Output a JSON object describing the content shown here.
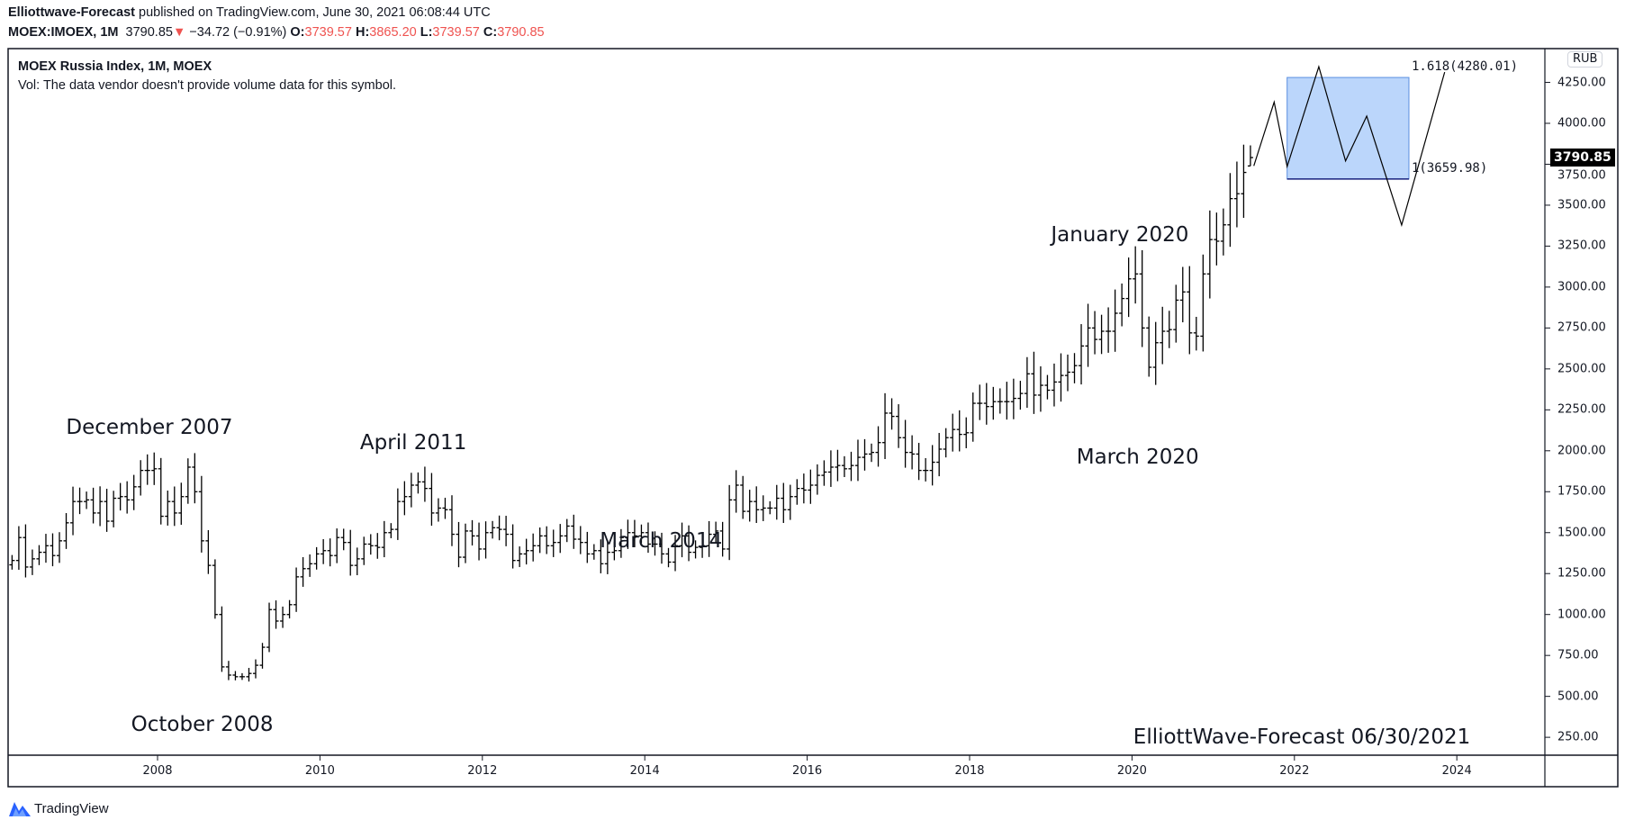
{
  "header": {
    "author": "Elliottwave-Forecast",
    "published": "published on TradingView.com, June 30, 2021 06:08:44 UTC",
    "symbol": "MOEX:IMOEX, 1M",
    "last": "3790.85",
    "change": "−34.72 (−0.91%)",
    "o_label": "O:",
    "o": "3739.57",
    "h_label": "H:",
    "h": "3865.20",
    "l_label": "L:",
    "l": "3739.57",
    "c_label": "C:",
    "c": "3790.85",
    "down_color": "#ef5350"
  },
  "legend": {
    "title": "MOEX Russia Index, 1M, MOEX",
    "vol": "Vol: The data vendor doesn't provide volume data for this symbol."
  },
  "brand": {
    "name": "TradingView",
    "icon": "tradingview-logo-icon",
    "color": "#2962ff"
  },
  "chart_data": {
    "type": "ohlc-bar",
    "currency": "RUB",
    "last_price_label": "3790.85",
    "ylim": [
      100,
      4450
    ],
    "yticks": [
      "250.00",
      "500.00",
      "750.00",
      "1000.00",
      "1250.00",
      "1500.00",
      "1750.00",
      "2000.00",
      "2250.00",
      "2500.00",
      "2750.00",
      "3000.00",
      "3250.00",
      "3500.00",
      "3750.00",
      "4000.00",
      "4250.00"
    ],
    "xticks": [
      "2008",
      "2010",
      "2012",
      "2014",
      "2016",
      "2018",
      "2020",
      "2022",
      "2024"
    ],
    "xlim": [
      "2006-02",
      "2024-10"
    ],
    "grid": false,
    "start_month": "2006-03",
    "monthly_close": [
      1330,
      1470,
      1290,
      1340,
      1380,
      1420,
      1360,
      1450,
      1560,
      1690,
      1690,
      1700,
      1620,
      1690,
      1570,
      1710,
      1720,
      1700,
      1780,
      1880,
      1880,
      1890,
      1600,
      1690,
      1620,
      1720,
      1900,
      1750,
      1450,
      1300,
      1000,
      680,
      630,
      620,
      620,
      640,
      690,
      800,
      1030,
      960,
      1000,
      1060,
      1230,
      1280,
      1310,
      1370,
      1390,
      1360,
      1470,
      1440,
      1300,
      1340,
      1430,
      1420,
      1410,
      1500,
      1520,
      1690,
      1720,
      1790,
      1810,
      1770,
      1620,
      1650,
      1640,
      1490,
      1350,
      1510,
      1480,
      1400,
      1500,
      1530,
      1520,
      1490,
      1330,
      1370,
      1390,
      1420,
      1480,
      1420,
      1440,
      1480,
      1540,
      1460,
      1440,
      1370,
      1390,
      1310,
      1380,
      1390,
      1470,
      1500,
      1480,
      1500,
      1430,
      1430,
      1370,
      1320,
      1420,
      1480,
      1380,
      1410,
      1420,
      1490,
      1510,
      1400,
      1700,
      1790,
      1630,
      1690,
      1640,
      1650,
      1650,
      1710,
      1640,
      1720,
      1770,
      1760,
      1790,
      1850,
      1870,
      1900,
      1910,
      1890,
      1910,
      1960,
      1980,
      1990,
      2050,
      2230,
      2210,
      2080,
      1990,
      1980,
      1880,
      1880,
      1930,
      2010,
      2080,
      2130,
      2100,
      2110,
      2290,
      2290,
      2270,
      2300,
      2300,
      2300,
      2320,
      2350,
      2470,
      2340,
      2400,
      2370,
      2420,
      2460,
      2480,
      2520,
      2640,
      2750,
      2680,
      2730,
      2730,
      2840,
      2930,
      3050,
      3080,
      2750,
      2510,
      2660,
      2730,
      2740,
      2920,
      2970,
      2720,
      2700,
      3080,
      3290,
      3280,
      3380,
      3540,
      3570,
      3700,
      3790.85
    ],
    "last_bar": {
      "open": 3739.57,
      "high": 3865.2,
      "low": 3739.57,
      "close": 3790.85
    },
    "projection_path": [
      {
        "date": 2021.5,
        "value": 3740
      },
      {
        "date": 2021.75,
        "value": 4130
      },
      {
        "date": 2021.91,
        "value": 3736
      },
      {
        "date": 2022.3,
        "value": 4346
      },
      {
        "date": 2022.63,
        "value": 3770
      },
      {
        "date": 2022.89,
        "value": 4044
      },
      {
        "date": 2023.32,
        "value": 3379
      },
      {
        "date": 2023.85,
        "value": 4313
      }
    ],
    "target_box": {
      "from": 2021.91,
      "to": 2023.41,
      "top": 4280.01,
      "bottom": 3659.98,
      "color": "#bbd6fb",
      "border": "#5b8fe0"
    },
    "fib_labels": {
      "upper": "1.618(4280.01)",
      "lower": "1(3659.98)"
    },
    "annotations": [
      {
        "text": "December 2007",
        "date": 2007.9,
        "value": 2140
      },
      {
        "text": "October 2008",
        "date": 2008.55,
        "value": 330
      },
      {
        "text": "April 2011",
        "date": 2011.15,
        "value": 2050
      },
      {
        "text": "March 2014",
        "date": 2014.2,
        "value": 1450
      },
      {
        "text": "January 2020",
        "date": 2019.85,
        "value": 3320
      },
      {
        "text": "March 2020",
        "date": 2020.07,
        "value": 1960
      }
    ],
    "watermark": "ElliottWave-Forecast 06/30/2021"
  }
}
